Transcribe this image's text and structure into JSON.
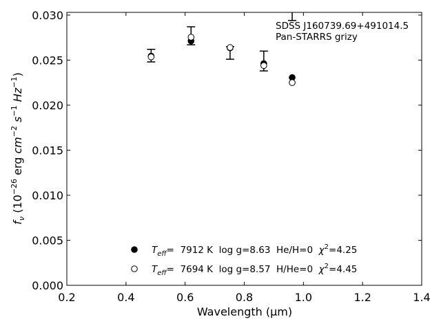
{
  "chart_data": {
    "type": "scatter",
    "xlabel": "Wavelength (μm)",
    "ylabel": "f_ν (10^-26 erg cm^-2 s^-1 Hz^-1)",
    "xlim": [
      0.2,
      1.4
    ],
    "ylim": [
      0.0,
      0.0303
    ],
    "x_ticks": [
      "0.2",
      "0.4",
      "0.6",
      "0.8",
      "1.0",
      "1.2",
      "1.4"
    ],
    "y_ticks": [
      "0.000",
      "0.005",
      "0.010",
      "0.015",
      "0.020",
      "0.025",
      "0.030"
    ],
    "grid": false,
    "annotation": {
      "object": "SDSS J160739.69+491014.5",
      "survey": "Pan-STARRS grizy"
    },
    "observed": {
      "x": [
        0.485,
        0.62,
        0.752,
        0.866,
        0.962
      ],
      "y": [
        0.0255,
        0.0277,
        0.0258,
        0.0249,
        0.0312
      ],
      "err_low": [
        0.0007,
        0.001,
        0.0007,
        0.0011,
        0.0018
      ],
      "err_high": [
        0.0007,
        0.001,
        0.0007,
        0.0011,
        0.0018
      ]
    },
    "series": [
      {
        "marker": "filled-circle",
        "x": [
          0.485,
          0.62,
          0.752,
          0.866,
          0.962
        ],
        "y": [
          0.02545,
          0.02712,
          0.02635,
          0.02462,
          0.02307
        ]
      },
      {
        "marker": "open-circle",
        "x": [
          0.485,
          0.62,
          0.752,
          0.866,
          0.962
        ],
        "y": [
          0.02535,
          0.02755,
          0.0264,
          0.0244,
          0.0225
        ]
      }
    ],
    "legend": {
      "placement": "lower-center",
      "entries": [
        {
          "marker": "filled-circle",
          "teff_label": "T",
          "teff_sub": "eff",
          "text": "=  7912 K  log g=8.63  He/H=0  ",
          "chi_sym": "χ",
          "chi_sup": "2",
          "chi_val": "=4.25"
        },
        {
          "marker": "open-circle",
          "teff_label": "T",
          "teff_sub": "eff",
          "text": "=  7694 K  log g=8.57  H/He=0  ",
          "chi_sym": "χ",
          "chi_sup": "2",
          "chi_val": "=4.45"
        }
      ]
    }
  }
}
